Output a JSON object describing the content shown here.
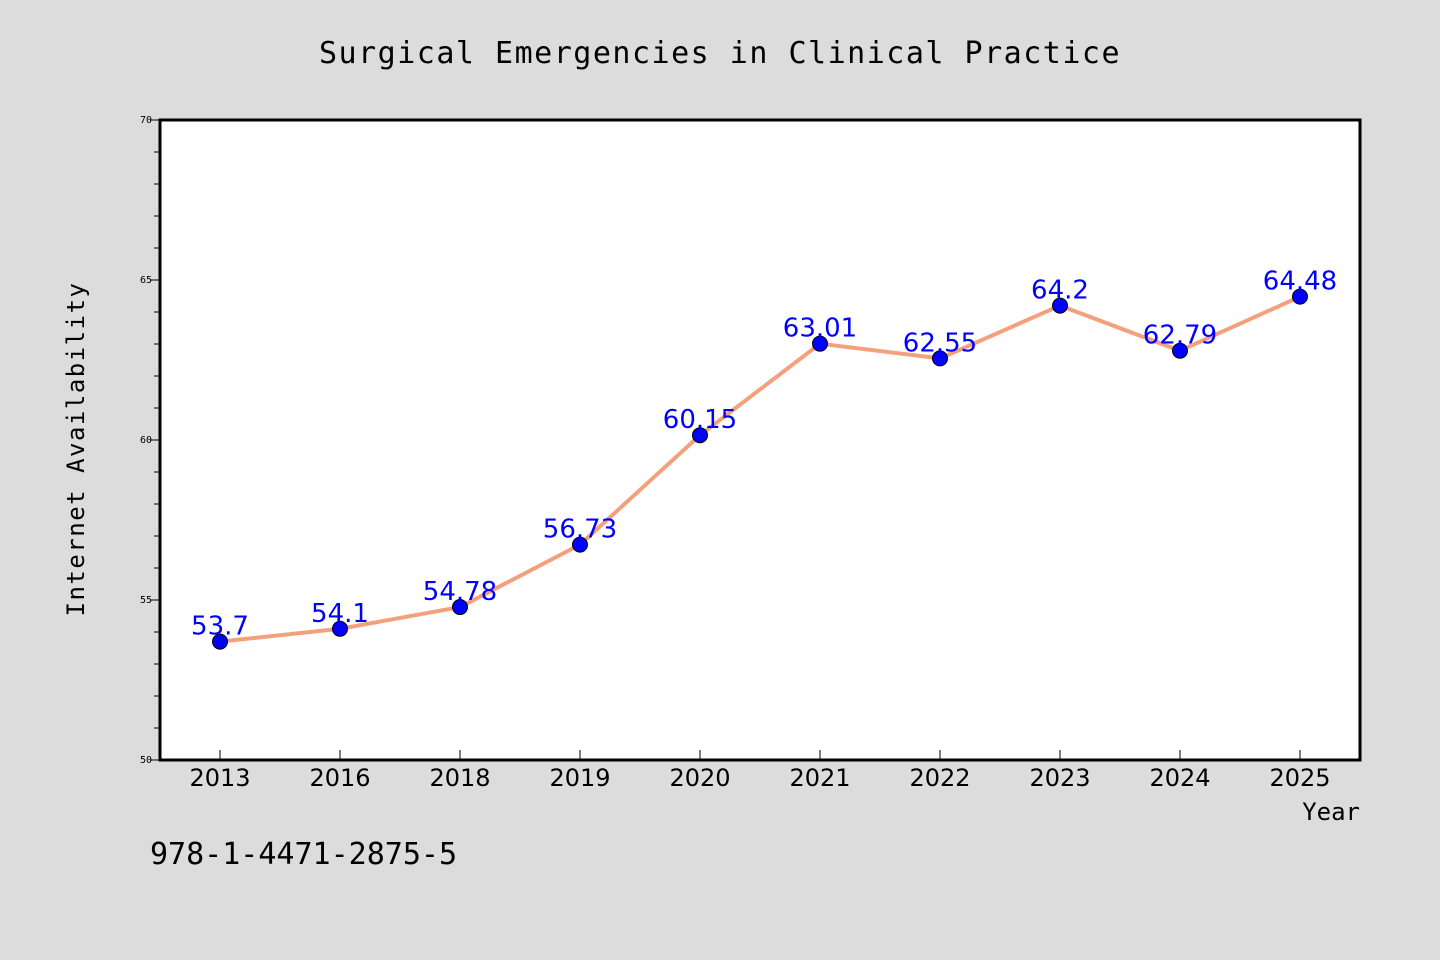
{
  "colors": {
    "background": "#dcdcdc",
    "plot_background": "#ffffff",
    "line": "#f4a07c",
    "marker": "#0000ff",
    "label": "#0000ff",
    "text": "#000000"
  },
  "isbn": "978-1-4471-2875-5",
  "chart_data": {
    "type": "line",
    "title": "Surgical Emergencies in Clinical Practice",
    "xlabel": "Year",
    "ylabel": "Internet Availability",
    "categories": [
      "2013",
      "2016",
      "2018",
      "2019",
      "2020",
      "2021",
      "2022",
      "2023",
      "2024",
      "2025"
    ],
    "series": [
      {
        "values": [
          53.7,
          54.1,
          54.78,
          56.73,
          60.15,
          63.01,
          62.55,
          64.2,
          62.79,
          64.48
        ],
        "labels": [
          "53.7",
          "54.1",
          "54.78",
          "56.73",
          "60.15",
          "63.01",
          "62.55",
          "64.2",
          "62.79",
          "64.48"
        ]
      }
    ],
    "ylim": [
      50,
      70
    ],
    "yticks": [
      "50",
      "55",
      "60",
      "65",
      "70"
    ],
    "y_minor_step": 1,
    "grid": false,
    "legend": "none"
  }
}
